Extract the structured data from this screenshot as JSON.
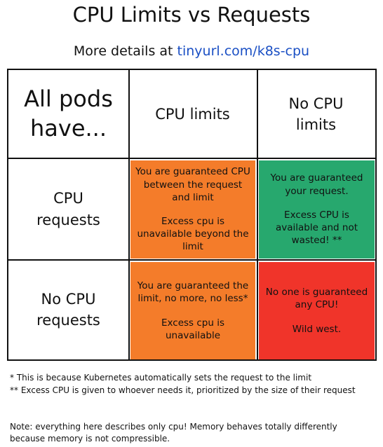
{
  "header": {
    "title": "CPU Limits vs Requests",
    "subtitle": "More details at",
    "link": "tinyurl.com/k8s-cpu"
  },
  "table": {
    "corner": "All pods have...",
    "columns": [
      "CPU limits",
      "No CPU limits"
    ],
    "rows": [
      {
        "label": "CPU requests",
        "cells": [
          [
            "You are guaranteed CPU between the request and limit",
            "Excess cpu is unavailable beyond the limit"
          ],
          [
            "You are guaranteed your request.",
            "Excess CPU is available and not wasted! **"
          ]
        ]
      },
      {
        "label": "No CPU requests",
        "cells": [
          [
            "You are guaranteed the limit, no more, no less*",
            "Excess cpu is unavailable"
          ],
          [
            "No one is guaranteed any CPU!",
            "Wild west."
          ]
        ]
      }
    ]
  },
  "footnotes": [
    "* This is because Kubernetes automatically sets the request to the limit",
    "** Excess CPU is given to whoever needs it, prioritized by the size of their request"
  ],
  "note": "Note: everything here describes only cpu! Memory behaves totally differently because memory is not compressible."
}
